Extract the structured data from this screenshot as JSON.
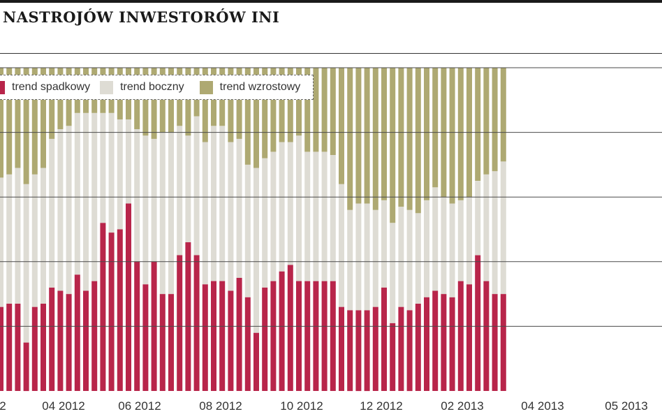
{
  "title": "NASTROJÓW INWESTORÓW INI",
  "legend": [
    {
      "label": "trend spadkowy",
      "color": "#b8254a"
    },
    {
      "label": "trend boczny",
      "color": "#dedcd4"
    },
    {
      "label": "trend wzrostowy",
      "color": "#aea972"
    }
  ],
  "chart_data": {
    "type": "bar",
    "stacked": true,
    "unit": "%",
    "ylim": [
      0,
      100
    ],
    "grid": true,
    "legend_position": "top-left",
    "x_tick_labels": [
      "2",
      "04 2012",
      "06 2012",
      "08 2012",
      "10 2012",
      "12 2012",
      "02 2013",
      "04 2013",
      "05 2013"
    ],
    "series": [
      {
        "name": "trend spadkowy",
        "values": [
          26,
          27,
          27,
          15,
          26,
          27,
          32,
          31,
          30,
          36,
          31,
          34,
          52,
          49,
          50,
          58,
          40,
          33,
          40,
          30,
          30,
          42,
          46,
          42,
          33,
          34,
          34,
          31,
          35,
          29,
          18,
          32,
          34,
          37,
          39,
          34,
          34,
          34,
          34,
          34,
          26,
          25,
          25,
          25,
          26,
          32,
          21,
          26,
          25,
          27,
          29,
          31,
          30,
          29,
          34,
          33,
          42,
          34,
          30,
          30
        ]
      },
      {
        "name": "trend boczny",
        "values": [
          40,
          40,
          42,
          49,
          41,
          42,
          46,
          50,
          52,
          50,
          55,
          52,
          34,
          37,
          34,
          26,
          41,
          46,
          38,
          50,
          50,
          40,
          33,
          43,
          44,
          48,
          48,
          46,
          43,
          41,
          51,
          40,
          40,
          40,
          38,
          45,
          40,
          40,
          40,
          39,
          38,
          31,
          33,
          33,
          30,
          27,
          31,
          31,
          31,
          28,
          30,
          32,
          30,
          29,
          25,
          27,
          23,
          33,
          38,
          41
        ]
      },
      {
        "name": "trend wzrostowy",
        "values": [
          34,
          33,
          31,
          36,
          33,
          31,
          22,
          19,
          18,
          14,
          14,
          14,
          14,
          14,
          16,
          16,
          19,
          21,
          22,
          20,
          20,
          18,
          21,
          15,
          23,
          18,
          18,
          23,
          22,
          30,
          31,
          28,
          26,
          23,
          23,
          21,
          26,
          26,
          26,
          27,
          36,
          44,
          42,
          42,
          44,
          41,
          48,
          43,
          44,
          45,
          41,
          37,
          40,
          42,
          41,
          40,
          35,
          33,
          32,
          29
        ]
      }
    ]
  }
}
